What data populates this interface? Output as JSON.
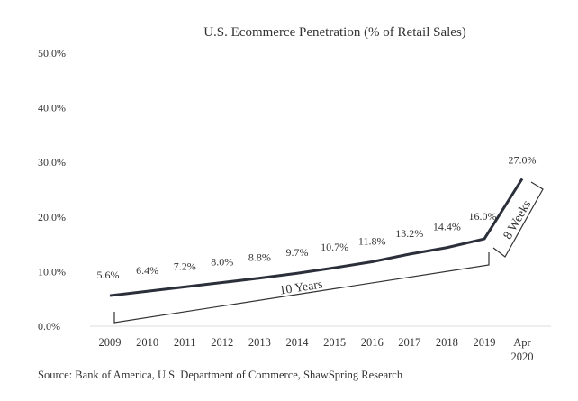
{
  "chart_data": {
    "type": "line",
    "title": "U.S. Ecommerce Penetration  (% of Retail Sales)",
    "categories": [
      "2009",
      "2010",
      "2011",
      "2012",
      "2013",
      "2014",
      "2015",
      "2016",
      "2017",
      "2018",
      "2019",
      "Apr 2020"
    ],
    "category_lines": [
      [
        "2009"
      ],
      [
        "2010"
      ],
      [
        "2011"
      ],
      [
        "2012"
      ],
      [
        "2013"
      ],
      [
        "2014"
      ],
      [
        "2015"
      ],
      [
        "2016"
      ],
      [
        "2017"
      ],
      [
        "2018"
      ],
      [
        "2019"
      ],
      [
        "Apr",
        "2020"
      ]
    ],
    "values": [
      5.6,
      6.4,
      7.2,
      8.0,
      8.8,
      9.7,
      10.7,
      11.8,
      13.2,
      14.4,
      16.0,
      27.0
    ],
    "data_labels": [
      "5.6%",
      "6.4%",
      "7.2%",
      "8.0%",
      "8.8%",
      "9.7%",
      "10.7%",
      "11.8%",
      "13.2%",
      "14.4%",
      "16.0%",
      "27.0%"
    ],
    "ylim": [
      0,
      50
    ],
    "yticks": [
      "0.0%",
      "10.0%",
      "20.0%",
      "30.0%",
      "40.0%",
      "50.0%"
    ],
    "grid": false,
    "line_color": "#2b2f3a",
    "annotations": [
      {
        "text": "10 Years",
        "span": [
          "2009",
          "2019"
        ]
      },
      {
        "text": "8 Weeks",
        "span": [
          "2019",
          "Apr 2020"
        ]
      }
    ],
    "source": "Source: Bank of America, U.S. Department of Commerce, ShawSpring Research"
  }
}
